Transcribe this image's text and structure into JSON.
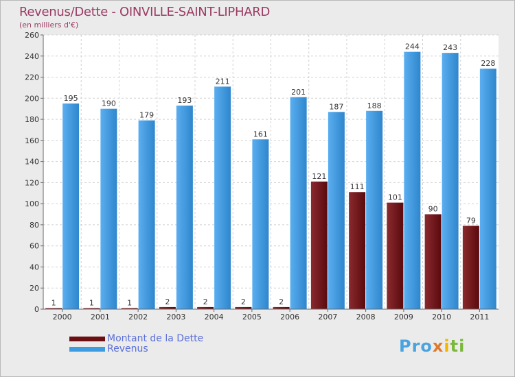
{
  "title": "Revenus/Dette - OINVILLE-SAINT-LIPHARD",
  "subtitle": "(en milliers d'€)",
  "colors": {
    "dette": "#6b0f12",
    "revenus": "#3d9be0",
    "title": "#9a3b63",
    "legend_text": "#5a6fd8"
  },
  "legend": [
    {
      "label": "Montant de la Dette",
      "color": "#6b0f12"
    },
    {
      "label": "Revenus",
      "color": "#3d9be0"
    }
  ],
  "logo": {
    "text": "Proxiti",
    "parts": [
      "Pro",
      "x",
      "i",
      "ti"
    ]
  },
  "chart_data": {
    "type": "bar",
    "title": "Revenus/Dette - OINVILLE-SAINT-LIPHARD",
    "ylabel": "(en milliers d'€)",
    "categories": [
      "2000",
      "2001",
      "2002",
      "2003",
      "2004",
      "2005",
      "2006",
      "2007",
      "2008",
      "2009",
      "2010",
      "2011"
    ],
    "series": [
      {
        "name": "Montant de la Dette",
        "values": [
          1,
          1,
          1,
          2,
          2,
          2,
          2,
          121,
          111,
          101,
          90,
          79
        ]
      },
      {
        "name": "Revenus",
        "values": [
          195,
          190,
          179,
          193,
          211,
          161,
          201,
          187,
          188,
          244,
          243,
          228
        ]
      }
    ],
    "ylim": [
      0,
      260
    ],
    "yticks": [
      0,
      20,
      40,
      60,
      80,
      100,
      120,
      140,
      160,
      180,
      200,
      220,
      240,
      260
    ],
    "grid": true,
    "legend_position": "bottom-left"
  }
}
